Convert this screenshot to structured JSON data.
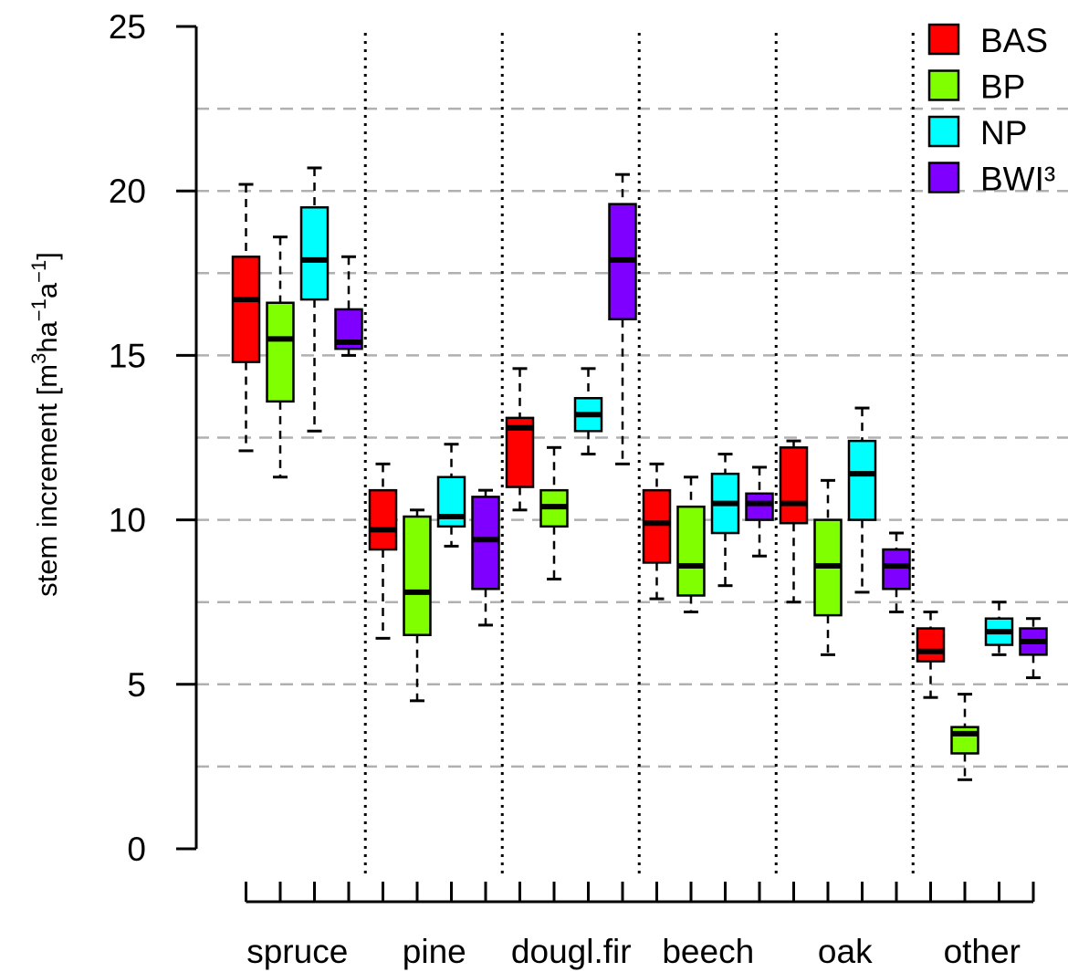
{
  "chart_data": {
    "type": "box",
    "ylabel": "stem increment [m3ha-1a-1]",
    "ylabel_parts": {
      "lead": "stem increment [m",
      "sup1": "3",
      "mid1": "ha",
      "sup2": "−1",
      "mid2": "a",
      "sup3": "−1",
      "tail": "]"
    },
    "ylim": [
      0,
      25
    ],
    "yticks": [
      "0",
      "5",
      "10",
      "15",
      "20",
      "25"
    ],
    "grid": "horizontal dashed at 2.5 intervals",
    "legend_position": "top-right",
    "categories": [
      "spruce",
      "pine",
      "dougl.fir",
      "beech",
      "oak",
      "other"
    ],
    "series": [
      {
        "name": "BAS",
        "color": "#ff0000"
      },
      {
        "name": "BP",
        "color": "#80ff00"
      },
      {
        "name": "NP",
        "color": "#00ffff"
      },
      {
        "name": "BWI³",
        "color": "#8000ff"
      }
    ],
    "boxes": [
      [
        {
          "min": 12.1,
          "q1": 14.8,
          "median": 16.7,
          "q3": 18.0,
          "max": 20.2
        },
        {
          "min": 11.3,
          "q1": 13.6,
          "median": 15.5,
          "q3": 16.6,
          "max": 18.6
        },
        {
          "min": 12.7,
          "q1": 16.7,
          "median": 17.9,
          "q3": 19.5,
          "max": 20.7
        },
        {
          "min": 15.0,
          "q1": 15.2,
          "median": 15.4,
          "q3": 16.4,
          "max": 18.0
        }
      ],
      [
        {
          "min": 6.4,
          "q1": 9.1,
          "median": 9.7,
          "q3": 10.9,
          "max": 11.7
        },
        {
          "min": 4.5,
          "q1": 6.5,
          "median": 7.8,
          "q3": 10.1,
          "max": 10.3
        },
        {
          "min": 9.2,
          "q1": 9.8,
          "median": 10.1,
          "q3": 11.3,
          "max": 12.3
        },
        {
          "min": 6.8,
          "q1": 7.9,
          "median": 9.4,
          "q3": 10.7,
          "max": 10.9
        }
      ],
      [
        {
          "min": 10.3,
          "q1": 11.0,
          "median": 12.8,
          "q3": 13.1,
          "max": 14.6
        },
        {
          "min": 8.2,
          "q1": 9.8,
          "median": 10.4,
          "q3": 10.9,
          "max": 12.2
        },
        {
          "min": 12.0,
          "q1": 12.7,
          "median": 13.2,
          "q3": 13.7,
          "max": 14.6
        },
        {
          "min": 11.7,
          "q1": 16.1,
          "median": 17.9,
          "q3": 19.6,
          "max": 20.5
        }
      ],
      [
        {
          "min": 7.6,
          "q1": 8.7,
          "median": 9.9,
          "q3": 10.9,
          "max": 11.7
        },
        {
          "min": 7.2,
          "q1": 7.7,
          "median": 8.6,
          "q3": 10.4,
          "max": 11.3
        },
        {
          "min": 8.0,
          "q1": 9.6,
          "median": 10.5,
          "q3": 11.4,
          "max": 12.0
        },
        {
          "min": 8.9,
          "q1": 10.0,
          "median": 10.5,
          "q3": 10.8,
          "max": 11.6
        }
      ],
      [
        {
          "min": 7.5,
          "q1": 9.9,
          "median": 10.5,
          "q3": 12.2,
          "max": 12.4
        },
        {
          "min": 5.9,
          "q1": 7.1,
          "median": 8.6,
          "q3": 10.0,
          "max": 11.2
        },
        {
          "min": 7.8,
          "q1": 10.0,
          "median": 11.4,
          "q3": 12.4,
          "max": 13.4
        },
        {
          "min": 7.2,
          "q1": 7.9,
          "median": 8.6,
          "q3": 9.1,
          "max": 9.6
        }
      ],
      [
        {
          "min": 4.6,
          "q1": 5.7,
          "median": 6.0,
          "q3": 6.7,
          "max": 7.2
        },
        {
          "min": 2.1,
          "q1": 2.9,
          "median": 3.5,
          "q3": 3.7,
          "max": 4.7
        },
        {
          "min": 5.9,
          "q1": 6.2,
          "median": 6.6,
          "q3": 7.0,
          "max": 7.5
        },
        {
          "min": 5.2,
          "q1": 5.9,
          "median": 6.3,
          "q3": 6.7,
          "max": 7.0
        }
      ]
    ]
  }
}
